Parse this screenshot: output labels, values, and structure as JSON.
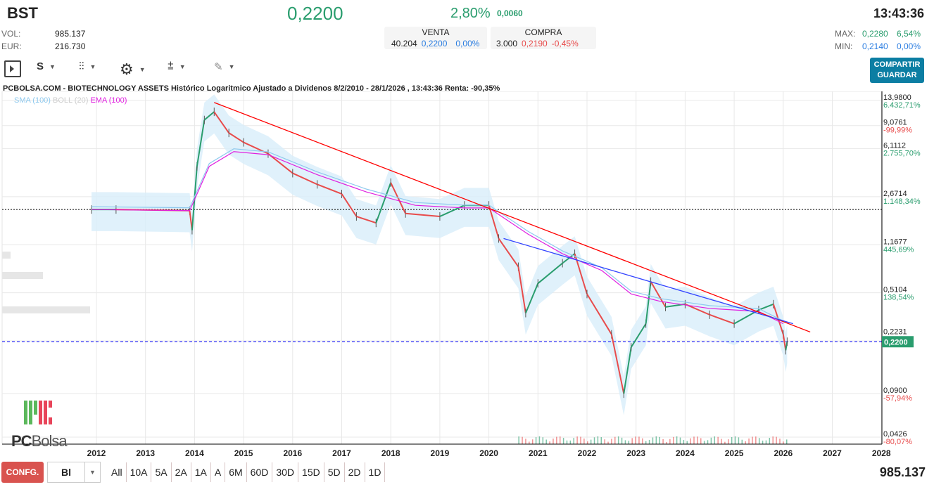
{
  "header": {
    "ticker": "BST",
    "price": "0,2200",
    "change_pct": "2,80%",
    "change_abs": "0,0060",
    "time": "13:43:36",
    "vol_label": "VOL:",
    "vol": "985.137",
    "eur_label": "EUR:",
    "eur": "216.730",
    "venta": {
      "label": "VENTA",
      "qty": "40.204",
      "price": "0,2200",
      "pct": "0,00%"
    },
    "compra": {
      "label": "COMPRA",
      "qty": "3.000",
      "price": "0,2190",
      "pct": "-0,45%"
    },
    "max_label": "MAX:",
    "max": "0,2280",
    "max_pct": "6,54%",
    "min_label": "MIN:",
    "min": "0,2140",
    "min_pct": "0,00%"
  },
  "toolbar": {
    "period": "S",
    "share_label": "COMPARTIR",
    "save_label": "GUARDAR"
  },
  "chart_title": "PCBOLSA.COM - BIOTECHNOLOGY ASSETS Histórico Logaritmico Ajustado a Dividenos 8/2/2010 - 28/1/2026 , 13:43:36 Renta: -90,35%",
  "legend": {
    "sma": "SMA (100)",
    "boll": "BOLL (20)",
    "ema": "EMA (100)"
  },
  "colors": {
    "up": "#2a9d6e",
    "down": "#e84b4b",
    "ema": "#e020e0",
    "sma": "#8ec9ee",
    "boll_fill": "#d8eefa",
    "trend_red": "#ff0000",
    "trend_blue": "#3344ff"
  },
  "chart_data": {
    "type": "line",
    "y_scale": "log",
    "grid": true,
    "x_ticks": [
      "2012",
      "2013",
      "2014",
      "2015",
      "2016",
      "2017",
      "2018",
      "2019",
      "2020",
      "2021",
      "2022",
      "2023",
      "2024",
      "2025",
      "2026",
      "2027",
      "2028"
    ],
    "y_ticks": [
      {
        "v": "13,9800",
        "p": "6.432,71%",
        "pc": "up"
      },
      {
        "v": "9,0761",
        "p": "-99,99%",
        "pc": "down"
      },
      {
        "v": "6,1112",
        "p": "2.755,70%",
        "pc": "up"
      },
      {
        "v": "2,6714",
        "p": "1.148,34%",
        "pc": "up"
      },
      {
        "v": "1,1677",
        "p": "445,69%",
        "pc": "up"
      },
      {
        "v": "0,5104",
        "p": "138,54%",
        "pc": "up"
      },
      {
        "v": "0,2231",
        "p": "",
        "pc": "up"
      },
      {
        "v": "0,0900",
        "p": "-57,94%",
        "pc": "down"
      },
      {
        "v": "0,0426",
        "p": "-80,07%",
        "pc": "down"
      }
    ],
    "y_tick_values": [
      13.98,
      9.0761,
      6.1112,
      2.6714,
      1.1677,
      0.5104,
      0.2231,
      0.09,
      0.0426
    ],
    "last_price": "0,2200",
    "last_value": 0.22,
    "ref_line": 2.14,
    "price": [
      [
        2011.9,
        2.14
      ],
      [
        2012.4,
        2.14
      ],
      [
        2013.9,
        2.1
      ],
      [
        2013.95,
        1.5
      ],
      [
        2014.05,
        4.5
      ],
      [
        2014.2,
        10
      ],
      [
        2014.4,
        11.5
      ],
      [
        2014.7,
        8
      ],
      [
        2015.0,
        6.8
      ],
      [
        2015.5,
        5.6
      ],
      [
        2016.0,
        4.0
      ],
      [
        2016.5,
        3.3
      ],
      [
        2017.0,
        2.8
      ],
      [
        2017.3,
        1.9
      ],
      [
        2017.7,
        1.7
      ],
      [
        2018.0,
        3.4
      ],
      [
        2018.3,
        2.0
      ],
      [
        2019.0,
        1.9
      ],
      [
        2019.5,
        2.3
      ],
      [
        2020.0,
        2.3
      ],
      [
        2020.2,
        1.3
      ],
      [
        2020.6,
        0.8
      ],
      [
        2020.75,
        0.36
      ],
      [
        2021.0,
        0.6
      ],
      [
        2021.5,
        0.85
      ],
      [
        2021.75,
        1.0
      ],
      [
        2022.0,
        0.5
      ],
      [
        2022.5,
        0.25
      ],
      [
        2022.75,
        0.09
      ],
      [
        2022.9,
        0.2
      ],
      [
        2023.2,
        0.3
      ],
      [
        2023.3,
        0.62
      ],
      [
        2023.6,
        0.4
      ],
      [
        2024.0,
        0.42
      ],
      [
        2024.5,
        0.35
      ],
      [
        2025.0,
        0.3
      ],
      [
        2025.5,
        0.38
      ],
      [
        2025.8,
        0.42
      ],
      [
        2026.0,
        0.25
      ],
      [
        2026.05,
        0.19
      ],
      [
        2026.08,
        0.22
      ]
    ],
    "ema": [
      [
        2011.9,
        2.14
      ],
      [
        2013.9,
        2.1
      ],
      [
        2014.3,
        4.5
      ],
      [
        2014.8,
        5.8
      ],
      [
        2015.5,
        5.5
      ],
      [
        2016.5,
        3.9
      ],
      [
        2017.5,
        2.9
      ],
      [
        2018.5,
        2.3
      ],
      [
        2019.5,
        2.2
      ],
      [
        2020.0,
        2.2
      ],
      [
        2020.8,
        1.4
      ],
      [
        2021.5,
        1.0
      ],
      [
        2022.3,
        0.75
      ],
      [
        2022.9,
        0.5
      ],
      [
        2023.5,
        0.44
      ],
      [
        2024.5,
        0.39
      ],
      [
        2025.5,
        0.37
      ],
      [
        2026.0,
        0.3
      ]
    ],
    "trendlines": [
      {
        "color": "red",
        "from": [
          2014.4,
          13.5
        ],
        "to": [
          2026.55,
          0.26
        ]
      },
      {
        "color": "blue",
        "from": [
          2020.3,
          1.3
        ],
        "to": [
          2026.2,
          0.3
        ]
      }
    ]
  },
  "range_buttons": [
    "All",
    "10A",
    "5A",
    "2A",
    "1A",
    "A",
    "6M",
    "60D",
    "30D",
    "15D",
    "5D",
    "2D",
    "1D"
  ],
  "bottom": {
    "config": "CONFG.",
    "chart_type": "Bl",
    "volume": "985.137"
  },
  "logo": "PCBolsa"
}
